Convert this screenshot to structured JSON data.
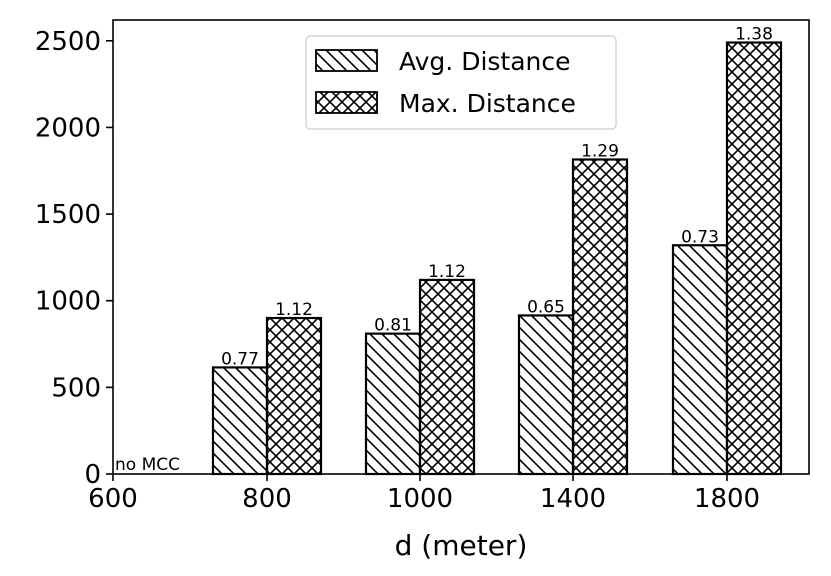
{
  "chart_data": {
    "type": "bar",
    "title": "",
    "xlabel": "d (meter)",
    "ylabel": "",
    "categories": [
      "600",
      "800",
      "1000",
      "1400",
      "1800"
    ],
    "ylim": [
      0,
      2620
    ],
    "yticks": [
      0,
      500,
      1000,
      1500,
      2000,
      2500
    ],
    "legend_position": "top-center",
    "series": [
      {
        "name": "Avg. Distance",
        "pattern": "diagonal",
        "values": [
          0,
          615,
          810,
          915,
          1320
        ],
        "labels": [
          "",
          "0.77",
          "0.81",
          "0.65",
          "0.73"
        ]
      },
      {
        "name": "Max. Distance",
        "pattern": "crosshatch",
        "values": [
          0,
          900,
          1120,
          1815,
          2490
        ],
        "labels": [
          "",
          "1.12",
          "1.12",
          "1.29",
          "1.38"
        ]
      }
    ],
    "annotations": [
      {
        "category": "600",
        "text": "no MCC"
      }
    ]
  }
}
